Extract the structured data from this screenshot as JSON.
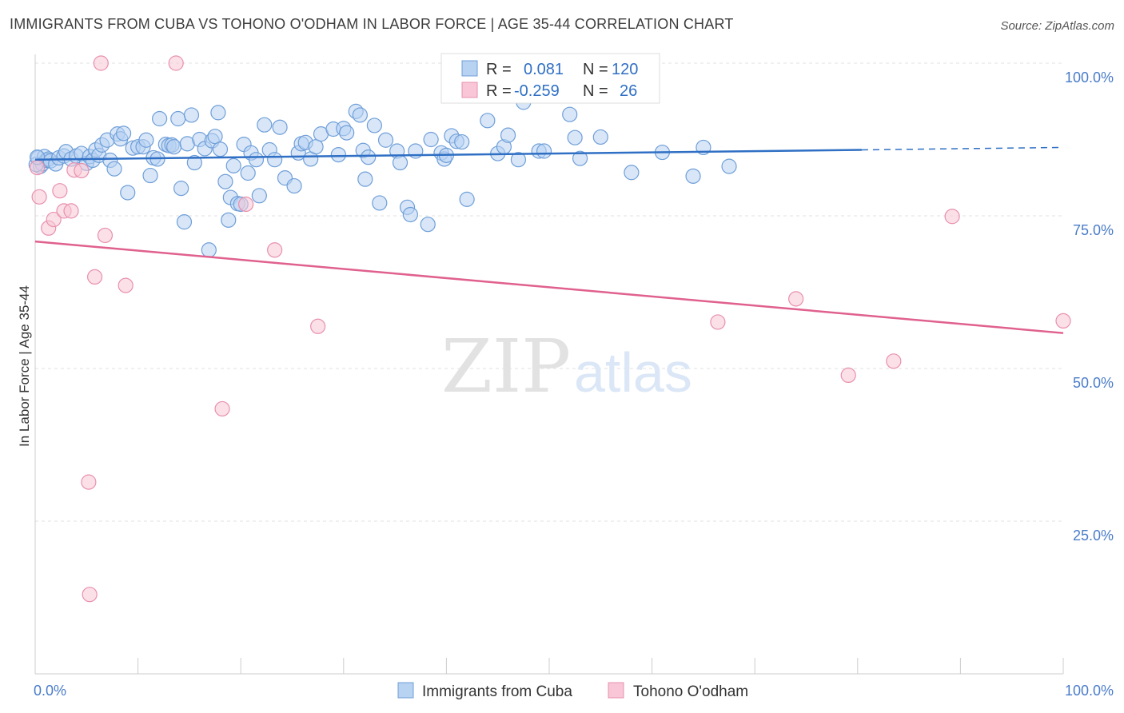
{
  "title": "IMMIGRANTS FROM CUBA VS TOHONO O'ODHAM IN LABOR FORCE | AGE 35-44 CORRELATION CHART",
  "source": "Source: ZipAtlas.com",
  "watermark": {
    "zip": "ZIP",
    "atlas": "atlas"
  },
  "legend_top": {
    "rows": [
      {
        "r_label": "R =",
        "r_value": "0.081",
        "n_label": "N =",
        "n_value": "120"
      },
      {
        "r_label": "R =",
        "r_value": "-0.259",
        "n_label": "N =",
        "n_value": "26"
      }
    ]
  },
  "colors": {
    "blue_fill": "#b8d2f2",
    "blue_stroke": "#6f9fd8",
    "blue_line": "#2f6fc4",
    "pink_fill": "#f8c6d6",
    "pink_stroke": "#e890ad",
    "pink_line": "#e0608e",
    "tick_text": "#4a7cc9",
    "grid": "#e2e2e2"
  },
  "chart_data": {
    "type": "scatter",
    "title": "IMMIGRANTS FROM CUBA VS TOHONO O'ODHAM IN LABOR FORCE | AGE 35-44 CORRELATION CHART",
    "xlabel": "",
    "ylabel": "In Labor Force | Age 35-44",
    "xlim": [
      0,
      100
    ],
    "ylim": [
      0,
      100
    ],
    "x_tick_labels": [
      "0.0%",
      "100.0%"
    ],
    "y_ticks": [
      25,
      50,
      75,
      100
    ],
    "y_tick_labels": [
      "25.0%",
      "50.0%",
      "75.0%",
      "100.0%"
    ],
    "grid": true,
    "legend": "bottom",
    "series": [
      {
        "name": "Immigrants from Cuba",
        "color": "#b8d2f2",
        "trend": {
          "x": [
            0,
            80.4
          ],
          "y": [
            84.2,
            85.8
          ],
          "dashed_to": [
            100,
            86.2
          ]
        },
        "points": [
          [
            0.3,
            84.5
          ],
          [
            0.5,
            83.1
          ],
          [
            0.7,
            83.5
          ],
          [
            0.9,
            84.7
          ],
          [
            1.1,
            84.1
          ],
          [
            1.3,
            84.3
          ],
          [
            1.5,
            84.0
          ],
          [
            2.0,
            83.5
          ],
          [
            2.3,
            84.5
          ],
          [
            2.8,
            84.8
          ],
          [
            3.0,
            85.5
          ],
          [
            3.5,
            84.3
          ],
          [
            4.0,
            84.8
          ],
          [
            4.5,
            85.2
          ],
          [
            5.0,
            83.6
          ],
          [
            5.3,
            84.7
          ],
          [
            5.6,
            84.1
          ],
          [
            5.9,
            85.8
          ],
          [
            6.2,
            84.9
          ],
          [
            6.5,
            86.6
          ],
          [
            7.0,
            87.4
          ],
          [
            7.3,
            84.1
          ],
          [
            7.7,
            82.7
          ],
          [
            8.0,
            88.4
          ],
          [
            8.3,
            87.6
          ],
          [
            8.6,
            88.5
          ],
          [
            9.0,
            78.8
          ],
          [
            9.5,
            86.1
          ],
          [
            10.0,
            86.3
          ],
          [
            10.5,
            86.3
          ],
          [
            10.8,
            87.4
          ],
          [
            11.2,
            81.6
          ],
          [
            11.5,
            84.5
          ],
          [
            11.9,
            84.3
          ],
          [
            12.1,
            90.9
          ],
          [
            12.7,
            86.7
          ],
          [
            13.0,
            86.5
          ],
          [
            13.3,
            86.6
          ],
          [
            13.5,
            86.3
          ],
          [
            13.9,
            90.9
          ],
          [
            14.2,
            79.5
          ],
          [
            14.5,
            74.0
          ],
          [
            14.8,
            86.8
          ],
          [
            15.2,
            91.5
          ],
          [
            15.5,
            83.7
          ],
          [
            16.0,
            87.5
          ],
          [
            16.5,
            86.0
          ],
          [
            16.9,
            69.4
          ],
          [
            17.2,
            87.3
          ],
          [
            17.5,
            88.0
          ],
          [
            17.8,
            91.9
          ],
          [
            18.0,
            85.9
          ],
          [
            18.5,
            80.6
          ],
          [
            18.8,
            74.3
          ],
          [
            19.0,
            78.0
          ],
          [
            19.3,
            83.2
          ],
          [
            19.7,
            77.0
          ],
          [
            20.0,
            76.9
          ],
          [
            20.3,
            86.7
          ],
          [
            20.7,
            82.0
          ],
          [
            21.0,
            85.3
          ],
          [
            21.5,
            84.2
          ],
          [
            21.8,
            78.3
          ],
          [
            22.3,
            89.9
          ],
          [
            22.8,
            85.8
          ],
          [
            23.3,
            84.2
          ],
          [
            23.8,
            89.5
          ],
          [
            24.3,
            81.2
          ],
          [
            25.2,
            79.9
          ],
          [
            25.6,
            85.3
          ],
          [
            25.9,
            86.8
          ],
          [
            26.3,
            87.0
          ],
          [
            26.8,
            84.3
          ],
          [
            27.3,
            86.3
          ],
          [
            27.8,
            88.4
          ],
          [
            29.0,
            89.2
          ],
          [
            29.5,
            85.0
          ],
          [
            30.0,
            89.3
          ],
          [
            30.3,
            88.6
          ],
          [
            31.2,
            92.1
          ],
          [
            31.6,
            91.5
          ],
          [
            31.9,
            85.7
          ],
          [
            32.1,
            81.0
          ],
          [
            32.4,
            84.6
          ],
          [
            33.0,
            89.8
          ],
          [
            33.5,
            77.1
          ],
          [
            34.1,
            87.4
          ],
          [
            35.2,
            85.6
          ],
          [
            35.5,
            83.7
          ],
          [
            36.2,
            76.4
          ],
          [
            36.5,
            75.2
          ],
          [
            37.0,
            85.6
          ],
          [
            38.2,
            73.6
          ],
          [
            38.5,
            87.5
          ],
          [
            39.5,
            85.3
          ],
          [
            39.8,
            84.3
          ],
          [
            40.0,
            84.9
          ],
          [
            40.5,
            88.1
          ],
          [
            41.0,
            87.2
          ],
          [
            41.5,
            87.1
          ],
          [
            42.0,
            77.7
          ],
          [
            44.0,
            90.6
          ],
          [
            45.0,
            85.2
          ],
          [
            45.6,
            86.3
          ],
          [
            46.0,
            88.2
          ],
          [
            47.0,
            84.2
          ],
          [
            47.5,
            93.6
          ],
          [
            49.0,
            85.6
          ],
          [
            49.5,
            85.6
          ],
          [
            52.0,
            91.6
          ],
          [
            52.5,
            87.8
          ],
          [
            53.0,
            84.4
          ],
          [
            55.0,
            87.9
          ],
          [
            58.0,
            82.1
          ],
          [
            61.0,
            85.4
          ],
          [
            64.0,
            81.5
          ],
          [
            65.0,
            86.2
          ],
          [
            67.5,
            83.1
          ],
          [
            0.1,
            83.4
          ],
          [
            0.2,
            84.6
          ]
        ]
      },
      {
        "name": "Tohono O'odham",
        "color": "#f8c6d6",
        "trend": {
          "x": [
            0,
            100
          ],
          "y": [
            70.8,
            55.8
          ]
        },
        "points": [
          [
            6.4,
            100.0
          ],
          [
            13.7,
            100.0
          ],
          [
            0.4,
            78.1
          ],
          [
            1.3,
            73.0
          ],
          [
            1.8,
            74.4
          ],
          [
            2.4,
            79.1
          ],
          [
            2.8,
            75.8
          ],
          [
            3.5,
            75.8
          ],
          [
            3.8,
            82.5
          ],
          [
            4.5,
            82.4
          ],
          [
            5.8,
            65.0
          ],
          [
            6.8,
            71.8
          ],
          [
            8.8,
            63.6
          ],
          [
            20.5,
            76.9
          ],
          [
            23.3,
            69.4
          ],
          [
            27.5,
            56.9
          ],
          [
            18.2,
            43.4
          ],
          [
            5.2,
            31.4
          ],
          [
            5.3,
            13.0
          ],
          [
            66.4,
            57.6
          ],
          [
            74.0,
            61.4
          ],
          [
            79.1,
            48.9
          ],
          [
            83.5,
            51.2
          ],
          [
            89.2,
            74.9
          ],
          [
            100.0,
            57.8
          ],
          [
            0.2,
            82.9
          ]
        ]
      }
    ]
  }
}
